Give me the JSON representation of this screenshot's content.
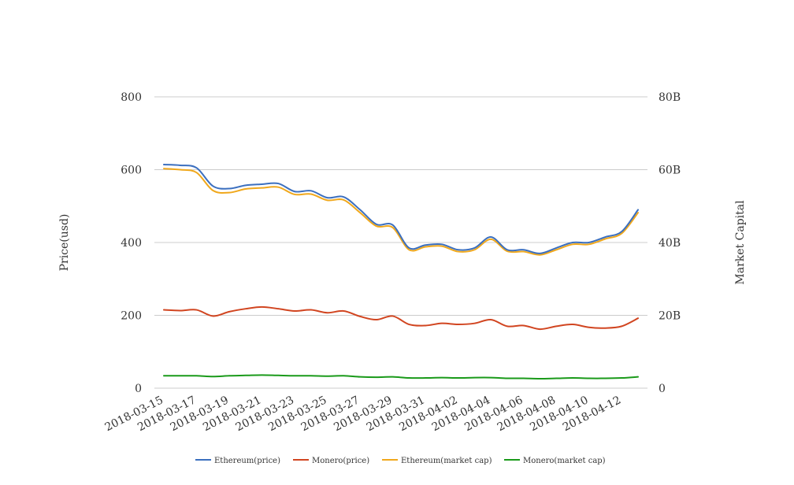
{
  "chart_data": {
    "type": "line",
    "title": "",
    "xlabel": "",
    "ylabel": "Price(usd)",
    "y2label": "Market Capital",
    "ylim": [
      0,
      800
    ],
    "y2lim": [
      0,
      80
    ],
    "y_ticks": [
      "0",
      "200",
      "400",
      "600",
      "800"
    ],
    "y2_ticks": [
      "0",
      "20B",
      "40B",
      "60B",
      "80B"
    ],
    "grid": true,
    "legend_position": "bottom",
    "x": [
      "2018-03-15",
      "2018-03-16",
      "2018-03-17",
      "2018-03-18",
      "2018-03-19",
      "2018-03-20",
      "2018-03-21",
      "2018-03-22",
      "2018-03-23",
      "2018-03-24",
      "2018-03-25",
      "2018-03-26",
      "2018-03-27",
      "2018-03-28",
      "2018-03-29",
      "2018-03-30",
      "2018-03-31",
      "2018-04-01",
      "2018-04-02",
      "2018-04-03",
      "2018-04-04",
      "2018-04-05",
      "2018-04-06",
      "2018-04-07",
      "2018-04-08",
      "2018-04-09",
      "2018-04-10",
      "2018-04-11",
      "2018-04-12",
      "2018-04-13"
    ],
    "x_tick_labels": [
      "2018-03-15",
      "2018-03-17",
      "2018-03-19",
      "2018-03-21",
      "2018-03-23",
      "2018-03-25",
      "2018-03-27",
      "2018-03-29",
      "2018-03-31",
      "2018-04-02",
      "2018-04-04",
      "2018-04-06",
      "2018-04-08",
      "2018-04-10",
      "2018-04-12"
    ],
    "series": [
      {
        "name": "Ethereum(price)",
        "axis": "left",
        "color": "#3b6fbf",
        "values": [
          614,
          612,
          605,
          555,
          548,
          557,
          560,
          562,
          540,
          542,
          523,
          525,
          490,
          450,
          448,
          385,
          393,
          395,
          380,
          385,
          415,
          380,
          380,
          370,
          385,
          400,
          400,
          415,
          430,
          490
        ]
      },
      {
        "name": "Monero(price)",
        "axis": "left",
        "color": "#d14520",
        "values": [
          215,
          213,
          215,
          198,
          210,
          218,
          223,
          218,
          212,
          215,
          207,
          212,
          197,
          188,
          198,
          175,
          172,
          178,
          175,
          178,
          188,
          170,
          172,
          162,
          170,
          175,
          167,
          165,
          170,
          192
        ]
      },
      {
        "name": "Ethereum(market cap)",
        "axis": "right",
        "color": "#f0a81c",
        "values": [
          60.3,
          60.0,
          59.2,
          54.3,
          53.7,
          54.7,
          55.0,
          55.2,
          53.2,
          53.3,
          51.6,
          51.7,
          48.2,
          44.5,
          44.1,
          38.0,
          38.8,
          39.0,
          37.5,
          38.0,
          40.9,
          37.6,
          37.5,
          36.6,
          38.0,
          39.5,
          39.5,
          41.0,
          42.5,
          48.2
        ]
      },
      {
        "name": "Monero(market cap)",
        "axis": "right",
        "color": "#1a9a1a",
        "values": [
          3.4,
          3.4,
          3.4,
          3.2,
          3.4,
          3.5,
          3.6,
          3.5,
          3.4,
          3.4,
          3.3,
          3.4,
          3.1,
          3.0,
          3.1,
          2.8,
          2.8,
          2.9,
          2.8,
          2.9,
          2.9,
          2.7,
          2.7,
          2.6,
          2.7,
          2.8,
          2.7,
          2.7,
          2.8,
          3.1
        ]
      }
    ]
  }
}
